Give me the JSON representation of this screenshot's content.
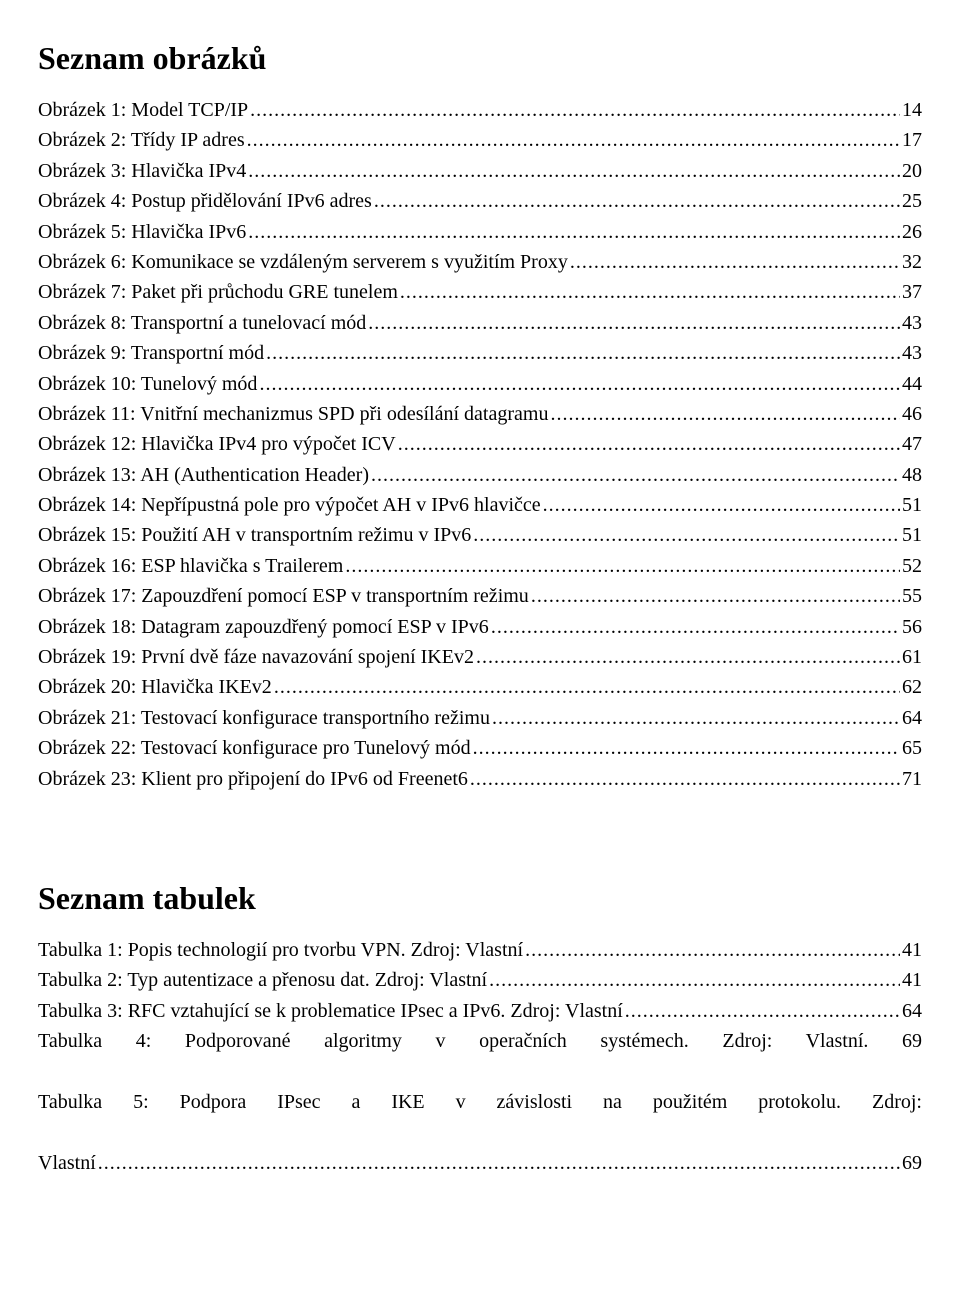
{
  "headings": {
    "figures": "Seznam obrázků",
    "tables": "Seznam tabulek"
  },
  "figures": [
    {
      "label": "Obrázek 1: Model TCP/IP",
      "page": "14"
    },
    {
      "label": "Obrázek 2: Třídy IP adres",
      "page": "17"
    },
    {
      "label": "Obrázek 3:  Hlavička IPv4",
      "page": "20"
    },
    {
      "label": "Obrázek 4: Postup přidělování IPv6 adres",
      "page": "25"
    },
    {
      "label": "Obrázek 5: Hlavička IPv6",
      "page": "26"
    },
    {
      "label": "Obrázek 6: Komunikace se vzdáleným serverem s využitím Proxy",
      "page": "32"
    },
    {
      "label": "Obrázek 7: Paket při průchodu GRE tunelem",
      "page": "37"
    },
    {
      "label": "Obrázek 8: Transportní a tunelovací mód",
      "page": "43"
    },
    {
      "label": "Obrázek 9: Transportní mód",
      "page": "43"
    },
    {
      "label": "Obrázek 10: Tunelový mód",
      "page": "44"
    },
    {
      "label": "Obrázek 11: Vnitřní mechanizmus SPD při odesílání datagramu",
      "page": "46"
    },
    {
      "label": "Obrázek 12: Hlavička IPv4 pro výpočet ICV",
      "page": "47"
    },
    {
      "label": "Obrázek 13: AH (Authentication Header)",
      "page": "48"
    },
    {
      "label": "Obrázek 14: Nepřípustná pole pro výpočet AH v IPv6 hlavičce",
      "page": "51"
    },
    {
      "label": "Obrázek 15: Použití AH v transportním režimu v IPv6",
      "page": "51"
    },
    {
      "label": "Obrázek 16: ESP hlavička s Trailerem",
      "page": "52"
    },
    {
      "label": "Obrázek 17: Zapouzdření pomocí ESP v transportním režimu",
      "page": "55"
    },
    {
      "label": "Obrázek 18: Datagram zapouzdřený pomocí ESP v IPv6",
      "page": "56"
    },
    {
      "label": "Obrázek 19: První dvě fáze navazování spojení IKEv2",
      "page": "61"
    },
    {
      "label": "Obrázek 20: Hlavička IKEv2",
      "page": "62"
    },
    {
      "label": "Obrázek 21: Testovací konfigurace transportního režimu",
      "page": "64"
    },
    {
      "label": "Obrázek 22: Testovací konfigurace pro Tunelový mód",
      "page": "65"
    },
    {
      "label": "Obrázek 23: Klient pro připojení do IPv6 od Freenet6",
      "page": "71"
    }
  ],
  "tables_simple": [
    {
      "label": "Tabulka 1: Popis technologií pro tvorbu VPN. Zdroj: Vlastní",
      "page": "41"
    },
    {
      "label": "Tabulka 2: Typ autentizace a přenosu dat. Zdroj: Vlastní",
      "page": "41"
    },
    {
      "label": "Tabulka 3: RFC vztahující se k problematice IPsec a IPv6. Zdroj: Vlastní",
      "page": "64"
    }
  ],
  "tables_noleader": {
    "t4": "Tabulka 4: Podporované algoritmy v operačních systémech. Zdroj: Vlastní. 69"
  },
  "tables_multiline": {
    "line1": "Tabulka 5: Podpora IPsec a IKE v závislosti na použitém protokolu. Zdroj:",
    "line2_label": "Vlastní",
    "line2_page": "69"
  }
}
